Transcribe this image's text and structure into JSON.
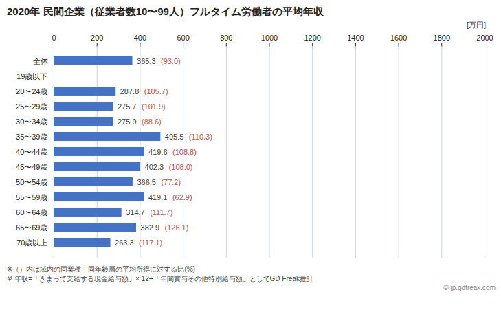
{
  "chart_data": {
    "type": "bar",
    "orientation": "horizontal",
    "title": "2020年 民間企業（従業者数10〜99人）フルタイム労働者の平均年収",
    "xlabel": "[万円]",
    "categories": [
      "全体",
      "19歳以下",
      "20〜24歳",
      "25〜29歳",
      "30〜34歳",
      "35〜39歳",
      "40〜44歳",
      "45〜49歳",
      "50〜54歳",
      "55〜59歳",
      "60〜64歳",
      "65〜69歳",
      "70歳以上"
    ],
    "values": [
      365.3,
      0,
      287.8,
      275.7,
      275.9,
      495.5,
      419.6,
      402.3,
      366.5,
      419.1,
      314.7,
      382.9,
      263.3
    ],
    "value_labels": [
      "365.3",
      null,
      "287.8",
      "275.7",
      "275.9",
      "495.5",
      "419.6",
      "402.3",
      "366.5",
      "419.1",
      "314.7",
      "382.9",
      "263.3"
    ],
    "ratios": {
      "color": "#c0504d",
      "labels": [
        "(93.0)",
        null,
        "(105.7)",
        "(101.9)",
        "(88.6)",
        "(110.3)",
        "(108.8)",
        "(108.0)",
        "(77.2)",
        "(62.9)",
        "(111.7)",
        "(126.1)",
        "(117.1)"
      ]
    },
    "color": "#4472c4",
    "data_labels": true,
    "xlim": [
      0,
      2000
    ],
    "xticks": [
      0,
      200,
      400,
      600,
      800,
      1000,
      1200,
      1400,
      1600,
      1800,
      2000
    ],
    "grid": true,
    "annotations": [
      "※（）内は域内の同業種・同年齢層の平均所得に対する比(%)",
      "※ 年収=「きまって支給する現金給与額」× 12+「年間賞与その他特別給与額」としてGD Freak推計"
    ],
    "source": "© jp.gdfreak.com"
  }
}
